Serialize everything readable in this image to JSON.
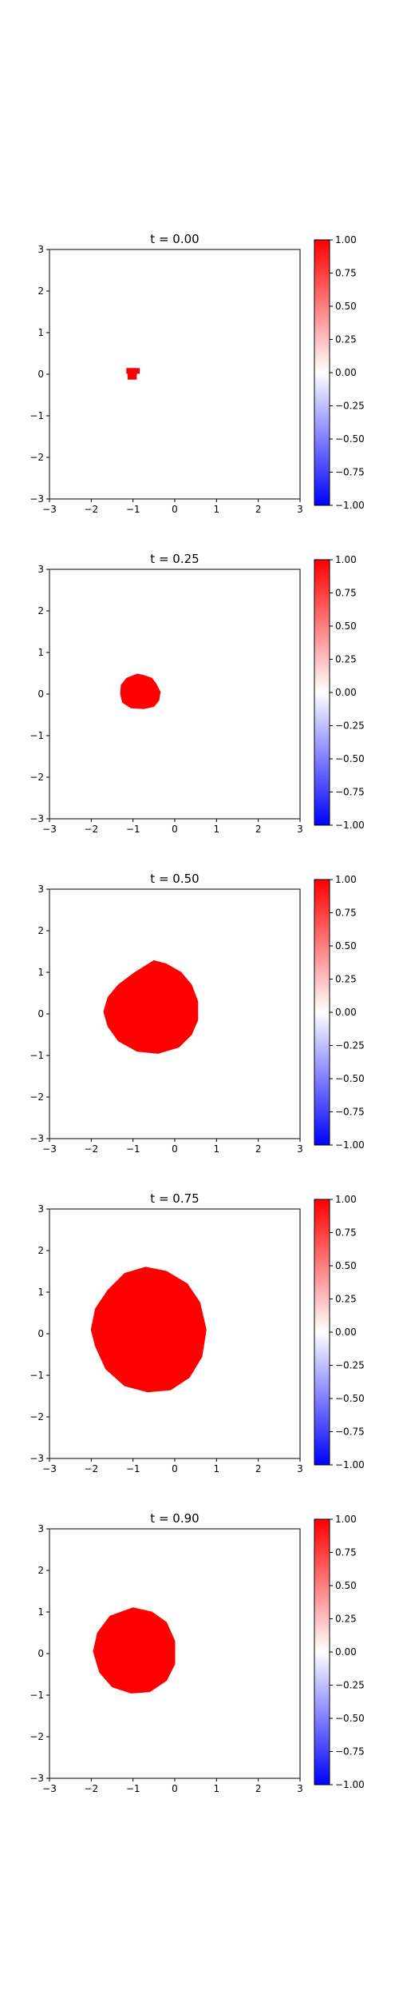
{
  "colors": {
    "blob": "#ff0000",
    "background": "#ffffff",
    "axis": "#000000",
    "colormap": [
      "#0000ff",
      "#ffffff",
      "#ff0000"
    ]
  },
  "chart_data": [
    {
      "type": "heatmap",
      "title": "t = 0.00",
      "xlim": [
        -3,
        3
      ],
      "ylim": [
        -3,
        3
      ],
      "xticks": [
        "−3",
        "−2",
        "−1",
        "0",
        "1",
        "2",
        "3"
      ],
      "yticks": [
        "−3",
        "−2",
        "−1",
        "0",
        "1",
        "2",
        "3"
      ],
      "colorbar": {
        "range": [
          -1,
          1
        ],
        "ticks": [
          "1.00",
          "0.75",
          "0.50",
          "0.25",
          "0.00",
          "−0.25",
          "−0.50",
          "−0.75",
          "−1.00"
        ]
      },
      "region": {
        "value": 1.0,
        "x_range": [
          -1.15,
          -0.85
        ],
        "y_range": [
          -0.12,
          0.14
        ],
        "outline": [
          [
            -1.12,
            -0.12
          ],
          [
            -0.92,
            -0.12
          ],
          [
            -0.92,
            0.02
          ],
          [
            -0.85,
            0.02
          ],
          [
            -0.85,
            0.14
          ],
          [
            -1.15,
            0.14
          ],
          [
            -1.15,
            0.02
          ],
          [
            -1.12,
            0.02
          ]
        ]
      }
    },
    {
      "type": "heatmap",
      "title": "t = 0.25",
      "xlim": [
        -3,
        3
      ],
      "ylim": [
        -3,
        3
      ],
      "xticks": [
        "−3",
        "−2",
        "−1",
        "0",
        "1",
        "2",
        "3"
      ],
      "yticks": [
        "−3",
        "−2",
        "−1",
        "0",
        "1",
        "2",
        "3"
      ],
      "colorbar": {
        "range": [
          -1,
          1
        ],
        "ticks": [
          "1.00",
          "0.75",
          "0.50",
          "0.25",
          "0.00",
          "−0.25",
          "−0.50",
          "−0.75",
          "−1.00"
        ]
      },
      "region": {
        "value": 1.0,
        "x_range": [
          -1.3,
          -0.35
        ],
        "y_range": [
          -0.35,
          0.48
        ],
        "outline": [
          [
            -0.9,
            0.48
          ],
          [
            -0.75,
            0.45
          ],
          [
            -0.55,
            0.38
          ],
          [
            -0.45,
            0.25
          ],
          [
            -0.35,
            0.05
          ],
          [
            -0.38,
            -0.15
          ],
          [
            -0.5,
            -0.3
          ],
          [
            -0.75,
            -0.35
          ],
          [
            -1.05,
            -0.33
          ],
          [
            -1.25,
            -0.2
          ],
          [
            -1.3,
            0.0
          ],
          [
            -1.28,
            0.22
          ],
          [
            -1.15,
            0.38
          ]
        ]
      }
    },
    {
      "type": "heatmap",
      "title": "t = 0.50",
      "xlim": [
        -3,
        3
      ],
      "ylim": [
        -3,
        3
      ],
      "xticks": [
        "−3",
        "−2",
        "−1",
        "0",
        "1",
        "2",
        "3"
      ],
      "yticks": [
        "−3",
        "−2",
        "−1",
        "0",
        "1",
        "2",
        "3"
      ],
      "colorbar": {
        "range": [
          -1,
          1
        ],
        "ticks": [
          "1.00",
          "0.75",
          "0.50",
          "0.25",
          "0.00",
          "−0.25",
          "−0.50",
          "−0.75",
          "−1.00"
        ]
      },
      "region": {
        "value": 1.0,
        "x_range": [
          -1.7,
          0.55
        ],
        "y_range": [
          -1.0,
          1.28
        ],
        "outline": [
          [
            -0.5,
            1.28
          ],
          [
            -0.2,
            1.2
          ],
          [
            0.15,
            1.0
          ],
          [
            0.4,
            0.7
          ],
          [
            0.55,
            0.3
          ],
          [
            0.55,
            -0.15
          ],
          [
            0.4,
            -0.5
          ],
          [
            0.1,
            -0.8
          ],
          [
            -0.4,
            -0.95
          ],
          [
            -0.9,
            -0.9
          ],
          [
            -1.35,
            -0.65
          ],
          [
            -1.6,
            -0.3
          ],
          [
            -1.7,
            0.05
          ],
          [
            -1.6,
            0.4
          ],
          [
            -1.35,
            0.7
          ],
          [
            -0.95,
            1.0
          ]
        ]
      }
    },
    {
      "type": "heatmap",
      "title": "t = 0.75",
      "xlim": [
        -3,
        3
      ],
      "ylim": [
        -3,
        3
      ],
      "xticks": [
        "−3",
        "−2",
        "−1",
        "0",
        "1",
        "2",
        "3"
      ],
      "yticks": [
        "−3",
        "−2",
        "−1",
        "0",
        "1",
        "2",
        "3"
      ],
      "colorbar": {
        "range": [
          -1,
          1
        ],
        "ticks": [
          "1.00",
          "0.75",
          "0.50",
          "0.25",
          "0.00",
          "−0.25",
          "−0.50",
          "−0.75",
          "−1.00"
        ]
      },
      "region": {
        "value": 1.0,
        "x_range": [
          -2.0,
          0.75
        ],
        "y_range": [
          -1.4,
          1.6
        ],
        "outline": [
          [
            -0.7,
            1.6
          ],
          [
            -0.2,
            1.5
          ],
          [
            0.3,
            1.2
          ],
          [
            0.6,
            0.75
          ],
          [
            0.75,
            0.1
          ],
          [
            0.65,
            -0.55
          ],
          [
            0.35,
            -1.05
          ],
          [
            -0.1,
            -1.35
          ],
          [
            -0.65,
            -1.4
          ],
          [
            -1.2,
            -1.25
          ],
          [
            -1.65,
            -0.85
          ],
          [
            -1.9,
            -0.3
          ],
          [
            -2.0,
            0.1
          ],
          [
            -1.9,
            0.6
          ],
          [
            -1.6,
            1.05
          ],
          [
            -1.2,
            1.45
          ]
        ]
      }
    },
    {
      "type": "heatmap",
      "title": "t = 0.90",
      "xlim": [
        -3,
        3
      ],
      "ylim": [
        -3,
        3
      ],
      "xticks": [
        "−3",
        "−2",
        "−1",
        "0",
        "1",
        "2",
        "3"
      ],
      "yticks": [
        "−3",
        "−2",
        "−1",
        "0",
        "1",
        "2",
        "3"
      ],
      "colorbar": {
        "range": [
          -1,
          1
        ],
        "ticks": [
          "1.00",
          "0.75",
          "0.50",
          "0.25",
          "0.00",
          "−0.25",
          "−0.50",
          "−0.75",
          "−1.00"
        ]
      },
      "region": {
        "value": 1.0,
        "x_range": [
          -1.95,
          0.0
        ],
        "y_range": [
          -0.95,
          1.1
        ],
        "outline": [
          [
            -1.0,
            1.1
          ],
          [
            -0.55,
            1.0
          ],
          [
            -0.2,
            0.75
          ],
          [
            0.0,
            0.3
          ],
          [
            0.0,
            -0.25
          ],
          [
            -0.2,
            -0.65
          ],
          [
            -0.6,
            -0.92
          ],
          [
            -1.05,
            -0.95
          ],
          [
            -1.5,
            -0.8
          ],
          [
            -1.8,
            -0.45
          ],
          [
            -1.95,
            0.05
          ],
          [
            -1.85,
            0.5
          ],
          [
            -1.55,
            0.9
          ]
        ]
      }
    }
  ]
}
